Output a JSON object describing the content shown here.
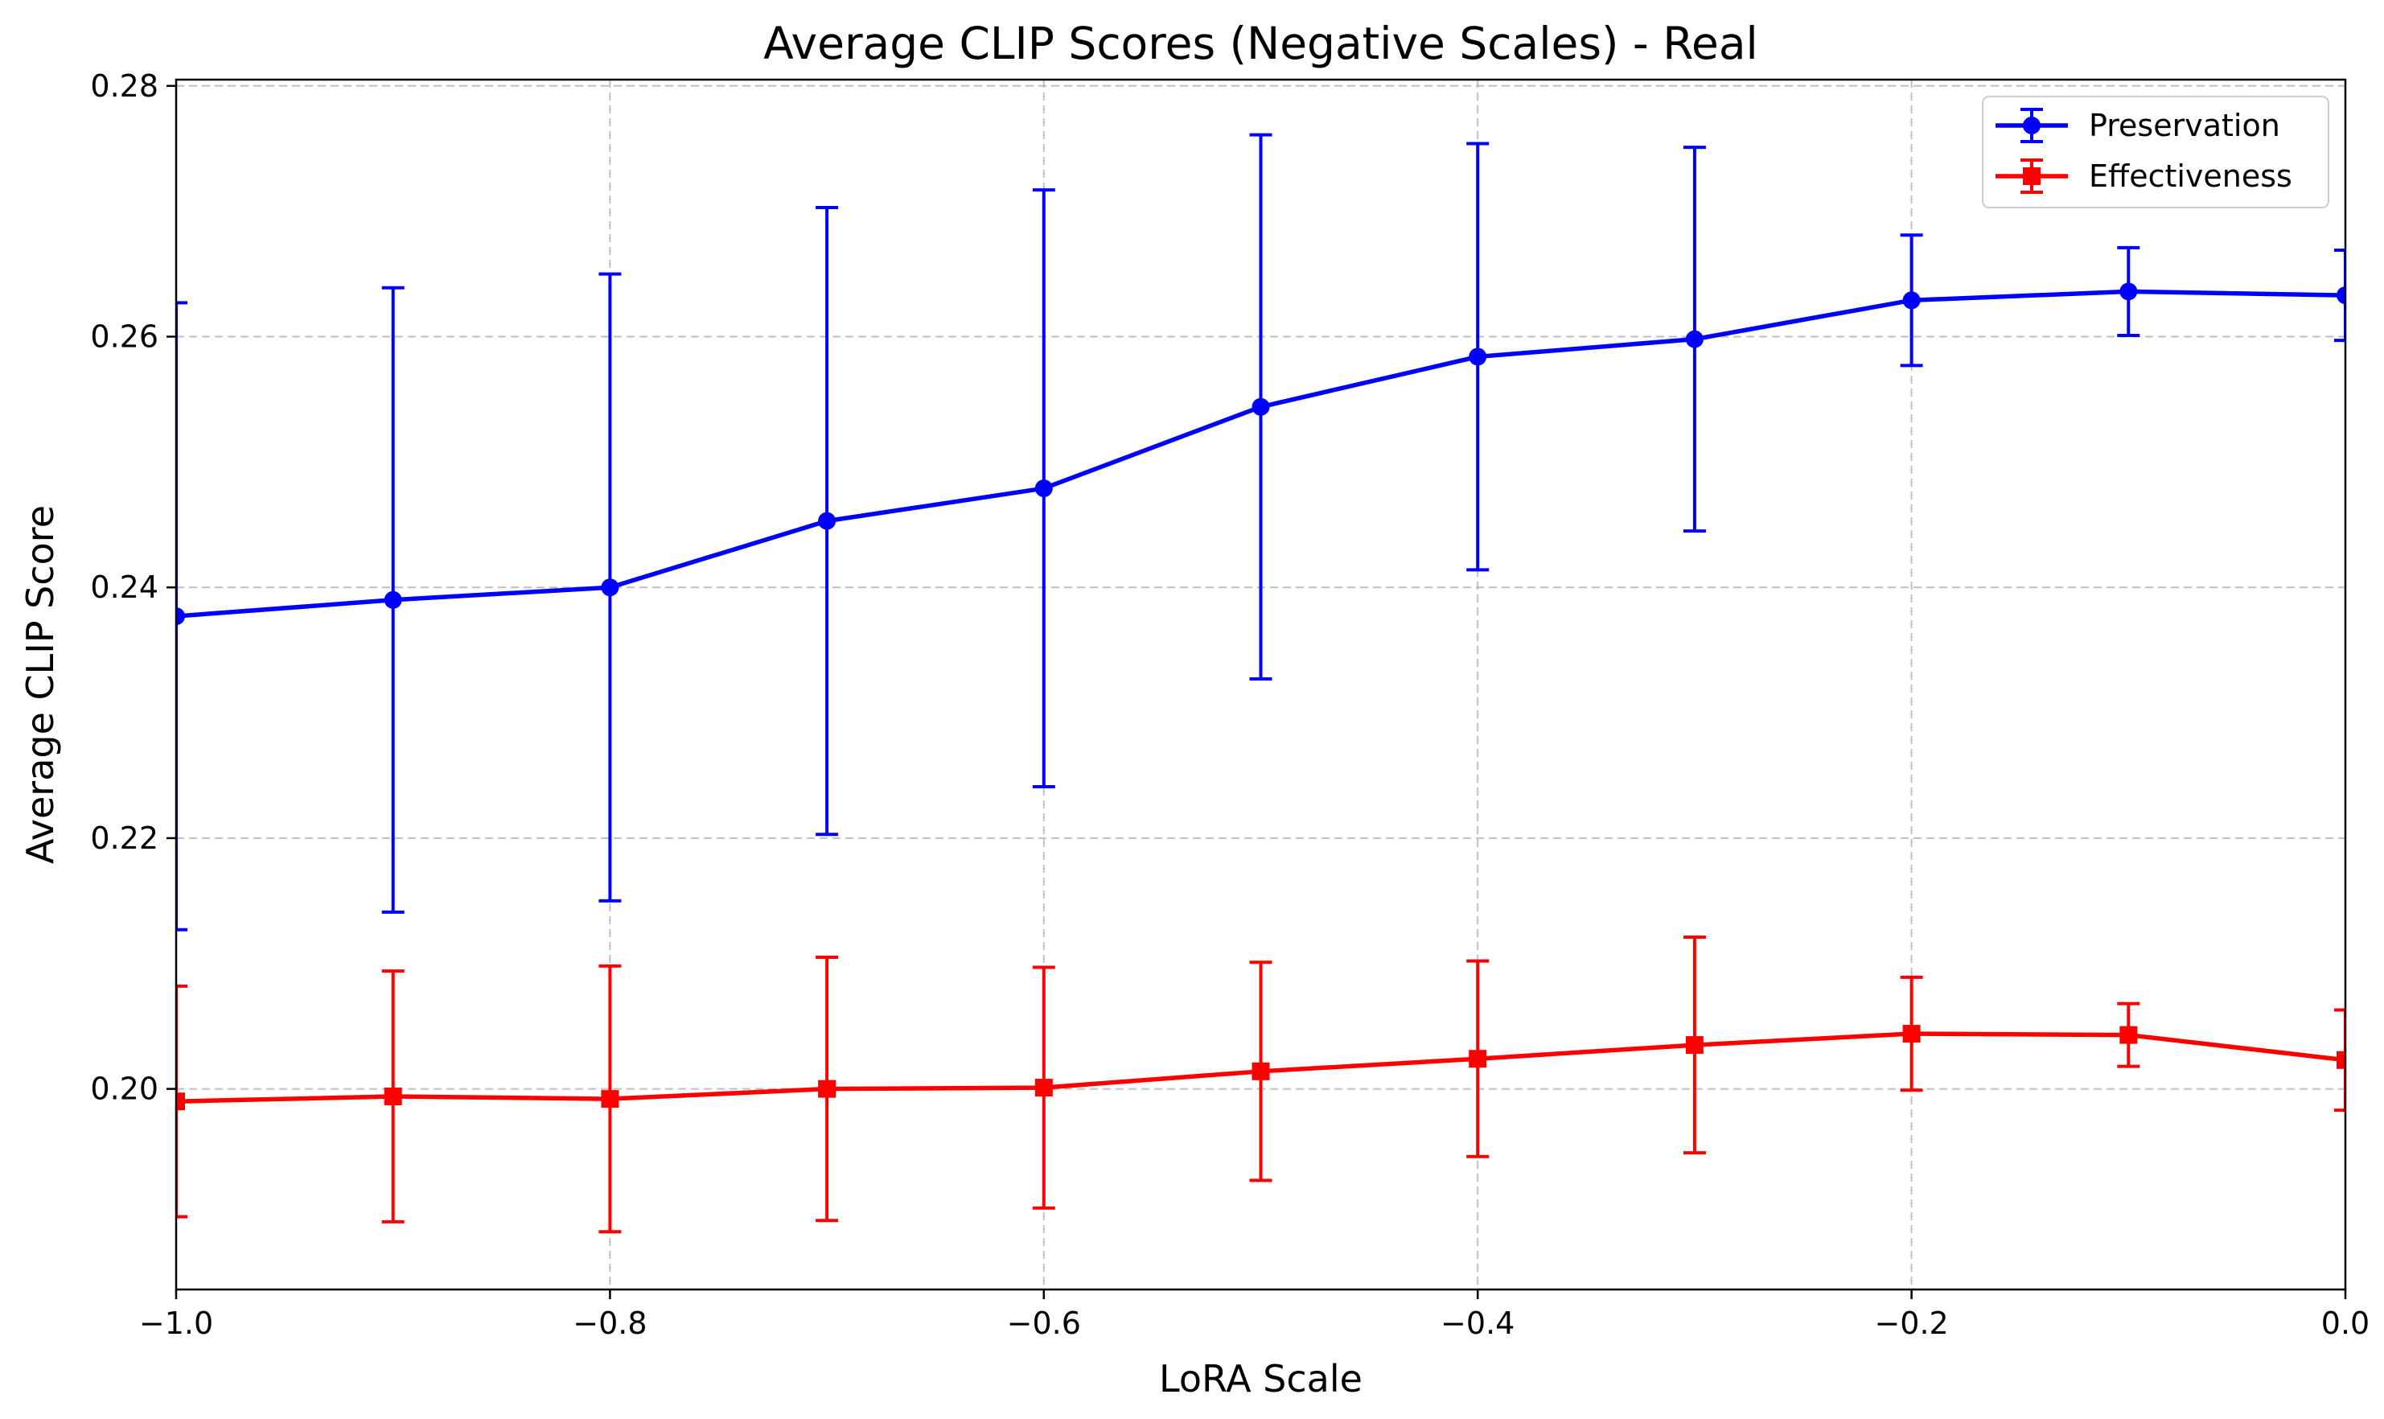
{
  "chart_data": {
    "type": "line",
    "title": "Average CLIP Scores (Negative Scales) - Real",
    "xlabel": "LoRA Scale",
    "ylabel": "Average CLIP Score",
    "xlim": [
      -1.0,
      0.0
    ],
    "ylim": [
      0.184,
      0.2805
    ],
    "grid": true,
    "grid_style": "dashed",
    "legend_position": "top-right",
    "x_ticks": [
      -1.0,
      -0.8,
      -0.6,
      -0.4,
      -0.2,
      0.0
    ],
    "x_tick_labels": [
      "−1.0",
      "−0.8",
      "−0.6",
      "−0.4",
      "−0.2",
      "0.0"
    ],
    "y_ticks": [
      0.2,
      0.22,
      0.24,
      0.26,
      0.28
    ],
    "y_tick_labels": [
      "0.20",
      "0.22",
      "0.24",
      "0.26",
      "0.28"
    ],
    "x": [
      -1.0,
      -0.9,
      -0.8,
      -0.7,
      -0.6,
      -0.5,
      -0.4,
      -0.3,
      -0.2,
      -0.1,
      0.0
    ],
    "series": [
      {
        "name": "Preservation",
        "color": "#0000ff",
        "marker": "circle",
        "values": [
          0.2377,
          0.239,
          0.24,
          0.2453,
          0.2479,
          0.2544,
          0.2584,
          0.2598,
          0.2629,
          0.2636,
          0.2633
        ],
        "error": [
          0.025,
          0.0249,
          0.025,
          0.025,
          0.0238,
          0.0217,
          0.017,
          0.0153,
          0.0052,
          0.0035,
          0.0036
        ]
      },
      {
        "name": "Effectiveness",
        "color": "#ff0000",
        "marker": "square",
        "values": [
          0.199,
          0.1994,
          0.1992,
          0.2,
          0.2001,
          0.2014,
          0.2024,
          0.2035,
          0.2044,
          0.2043,
          0.2023
        ],
        "error": [
          0.0092,
          0.01,
          0.0106,
          0.0105,
          0.0096,
          0.0087,
          0.0078,
          0.0086,
          0.0045,
          0.0025,
          0.004
        ]
      }
    ]
  }
}
